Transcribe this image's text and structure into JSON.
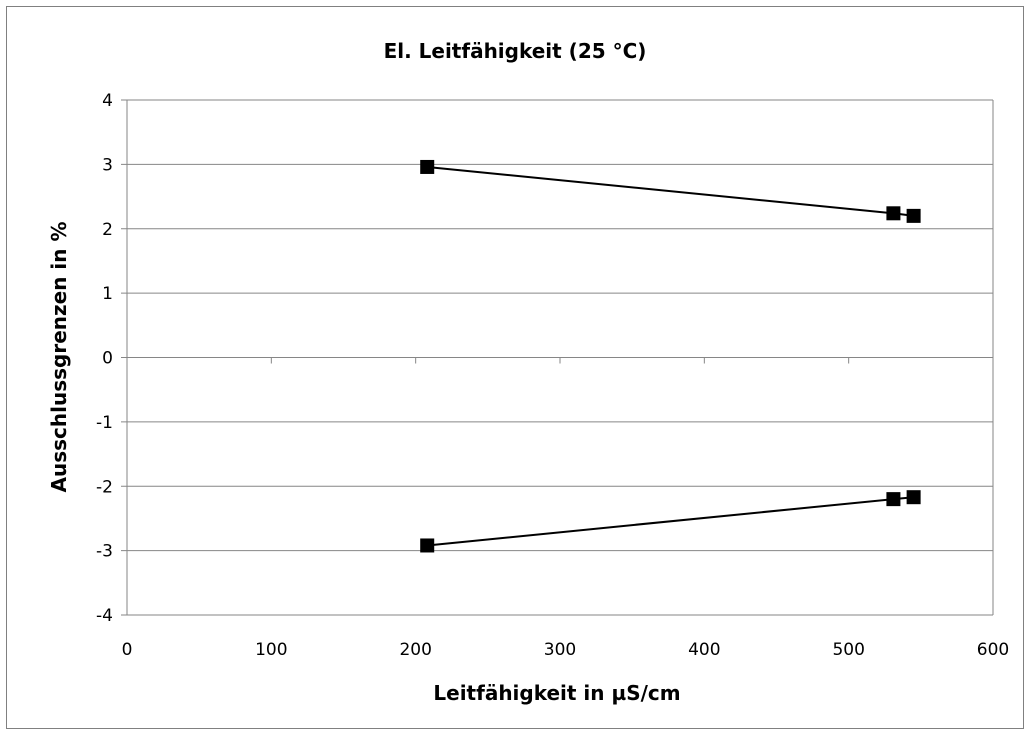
{
  "chart_data": {
    "type": "line",
    "title": "El. Leitfähigkeit (25 °C)",
    "xlabel": "Leitfähigkeit in µS/cm",
    "ylabel": "Ausschlussgrenzen in %",
    "xlim": [
      0,
      600
    ],
    "ylim": [
      -4,
      4
    ],
    "x_ticks": [
      "0",
      "100",
      "200",
      "300",
      "400",
      "500",
      "600"
    ],
    "y_ticks": [
      "4",
      "3",
      "2",
      "1",
      "0",
      "-1",
      "-2",
      "-3",
      "-4"
    ],
    "grid": "horizontal",
    "series": [
      {
        "points": [
          [
            208,
            2.96
          ],
          [
            531,
            2.24
          ],
          [
            545,
            2.2
          ]
        ]
      },
      {
        "points": [
          [
            208,
            -2.92
          ],
          [
            531,
            -2.2
          ],
          [
            545,
            -2.17
          ]
        ]
      }
    ],
    "colors": {
      "line": "#000000",
      "marker": "#000000",
      "grid": "#868686",
      "axis": "#868686"
    }
  }
}
